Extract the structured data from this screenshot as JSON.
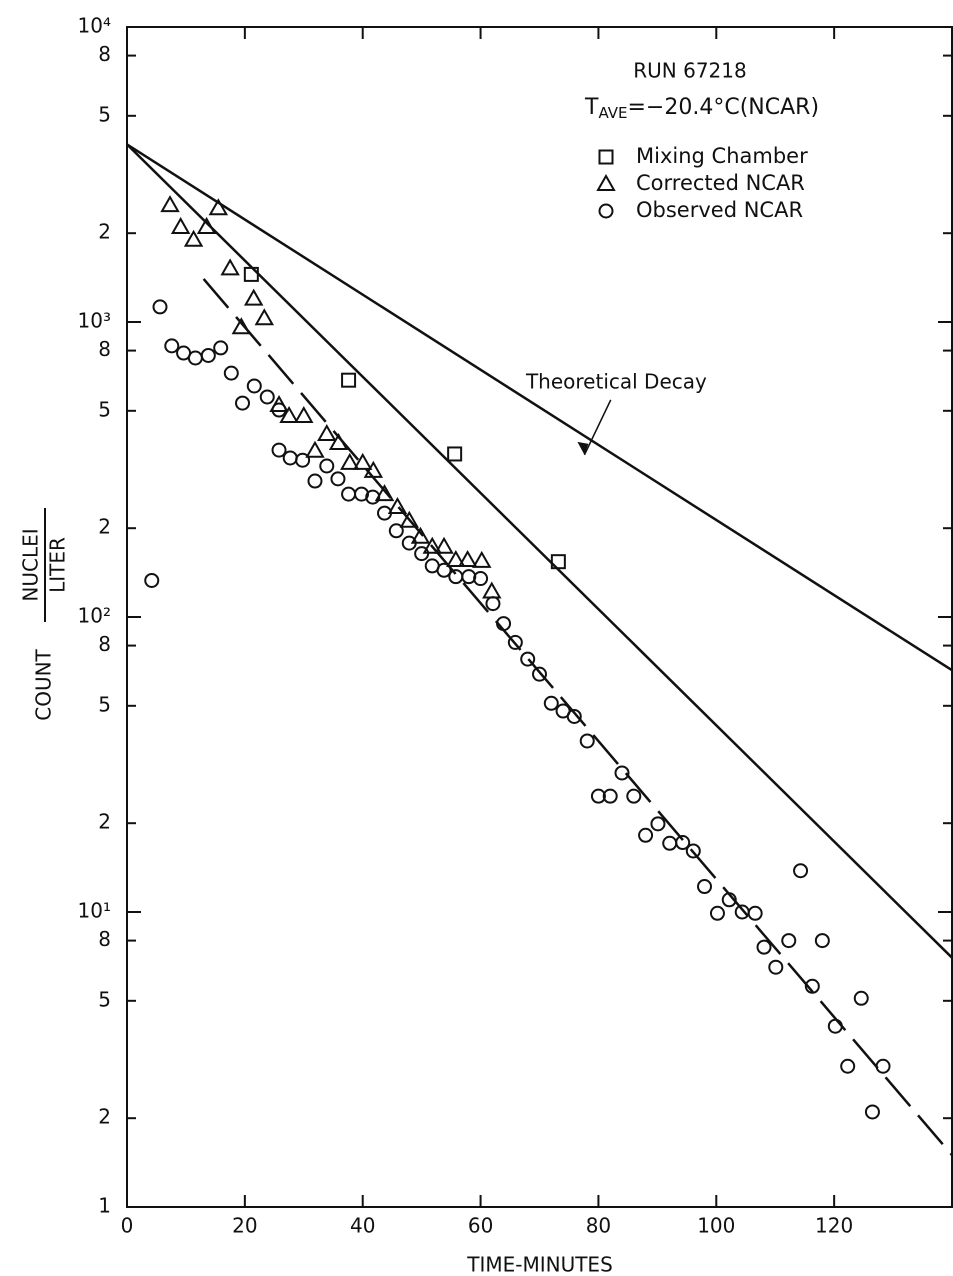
{
  "chart_data": {
    "type": "scatter",
    "ylog": true,
    "xlim": [
      0,
      140
    ],
    "ylim": [
      1,
      10000
    ],
    "xticks": [
      0,
      20,
      40,
      60,
      80,
      100,
      120
    ],
    "yticks": [
      1,
      2,
      5,
      8,
      {
        "value": 10,
        "label": "10¹"
      },
      {
        "value": 20,
        "label": "2"
      },
      {
        "value": 50,
        "label": "5"
      },
      {
        "value": 80,
        "label": "8"
      },
      {
        "value": 100,
        "label": "10²"
      },
      {
        "value": 200,
        "label": "2"
      },
      {
        "value": 500,
        "label": "5"
      },
      {
        "value": 800,
        "label": "8"
      },
      {
        "value": 1000,
        "label": "10³"
      },
      {
        "value": 2000,
        "label": "2"
      },
      {
        "value": 5000,
        "label": "5"
      },
      {
        "value": 8000,
        "label": "8"
      },
      {
        "value": 10000,
        "label": "10⁴"
      }
    ],
    "x_label": "TIME-MINUTES",
    "y_label": {
      "main": "COUNT",
      "numerator": "NUCLEI",
      "denominator": "LITER"
    },
    "run_label": "RUN 67218",
    "temperature_label": {
      "symbol": "T",
      "subscript": "AVE",
      "text": "=−20.4°C(NCAR)"
    },
    "series": [
      {
        "name": "Mixing Chamber",
        "marker": "square",
        "color": "#111111",
        "x": [
          21.1,
          37.6,
          55.6,
          73.2
        ],
        "values": [
          1450,
          635,
          357,
          154
        ]
      },
      {
        "name": "Corrected NCAR",
        "marker": "triangle",
        "color": "#111111",
        "x": [
          7.3,
          9.1,
          11.3,
          13.5,
          15.5,
          17.5,
          19.4,
          21.5,
          23.3,
          25.8,
          27.5,
          30.0,
          31.9,
          33.9,
          35.9,
          37.8,
          40.0,
          41.8,
          43.7,
          45.9,
          47.9,
          49.8,
          51.8,
          53.8,
          55.8,
          57.8,
          60.2,
          61.9
        ],
        "values": [
          2490,
          2100,
          1900,
          2100,
          2430,
          1520,
          960,
          1200,
          1030,
          523,
          480,
          480,
          366,
          417,
          389,
          333,
          333,
          313,
          261,
          236,
          212,
          187,
          173,
          173,
          156,
          156,
          155,
          122
        ]
      },
      {
        "name": "Observed NCAR",
        "marker": "circle",
        "color": "#111111",
        "x": [
          4.2,
          5.6,
          7.6,
          9.6,
          11.6,
          13.8,
          15.9,
          17.7,
          19.6,
          21.6,
          23.8,
          25.8,
          25.8,
          27.7,
          29.8,
          31.9,
          33.9,
          35.8,
          37.6,
          39.8,
          41.7,
          43.7,
          45.7,
          47.9,
          50.0,
          51.8,
          53.8,
          55.8,
          58.0,
          60.0,
          62.1,
          63.9,
          65.9,
          68.0,
          70.0,
          72.0,
          74.0,
          75.9,
          78.1,
          80.0,
          82.0,
          84.0,
          86.0,
          88.0,
          90.1,
          92.1,
          94.3,
          96.1,
          98.0,
          100.2,
          102.2,
          104.4,
          106.6,
          108.1,
          110.1,
          112.3,
          114.3,
          116.3,
          118.0,
          120.2,
          122.3,
          124.6,
          126.5,
          128.3
        ],
        "values": [
          133,
          1125,
          830,
          785,
          755,
          770,
          817,
          671,
          531,
          607,
          557,
          503,
          368,
          346,
          340,
          289,
          325,
          294,
          261,
          261,
          255,
          225,
          196,
          178,
          164,
          149,
          144,
          137,
          137,
          135,
          111,
          95,
          82,
          72,
          64,
          51,
          48,
          46,
          38,
          24.7,
          24.7,
          29.6,
          24.7,
          18.2,
          19.9,
          17.1,
          17.2,
          16.1,
          12.2,
          9.9,
          11,
          10,
          9.9,
          7.6,
          6.5,
          8.0,
          13.8,
          5.6,
          8.0,
          4.1,
          3.0,
          5.1,
          2.1,
          3.0
        ]
      }
    ],
    "lines": [
      {
        "name": "Theoretical Decay",
        "x": [
          0,
          140
        ],
        "values": [
          4000,
          66
        ],
        "dashed": false
      },
      {
        "x": [
          0,
          140
        ],
        "values": [
          4000,
          7
        ],
        "dashed": false
      },
      {
        "x": [
          13,
          140
        ],
        "values": [
          1400,
          1.5
        ],
        "dashed": true
      }
    ]
  }
}
